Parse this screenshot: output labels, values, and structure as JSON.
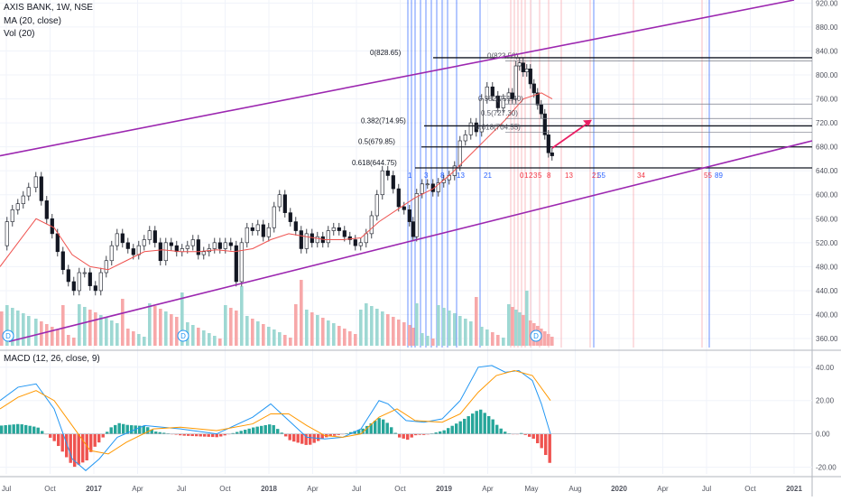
{
  "chart_data": [
    {
      "type": "candlestick",
      "legend": {
        "symbol": "AXIS BANK, 1W, NSE",
        "ma": "MA (20, close)",
        "vol": "Vol (20)"
      },
      "price_axis": {
        "ylim": [
          345,
          925
        ],
        "ticks": [
          "920.00",
          "880.00",
          "840.00",
          "800.00",
          "760.00",
          "720.00",
          "680.00",
          "640.00",
          "600.00",
          "560.00",
          "520.00",
          "480.00",
          "440.00",
          "400.00",
          "360.00"
        ]
      },
      "time_axis": {
        "labels": [
          "Jul",
          "Oct",
          "2017",
          "Apr",
          "Jul",
          "Oct",
          "2018",
          "Apr",
          "Jul",
          "Oct",
          "2019",
          "Apr",
          "May",
          "Aug",
          "2020",
          "Apr",
          "Jul",
          "Oct",
          "2021"
        ]
      },
      "price_path": [
        [
          0,
          515
        ],
        [
          6,
          555
        ],
        [
          12,
          575
        ],
        [
          18,
          585
        ],
        [
          24,
          598
        ],
        [
          30,
          612
        ],
        [
          38,
          630
        ],
        [
          44,
          590
        ],
        [
          50,
          560
        ],
        [
          56,
          535
        ],
        [
          62,
          505
        ],
        [
          68,
          475
        ],
        [
          74,
          455
        ],
        [
          80,
          440
        ],
        [
          86,
          470
        ],
        [
          92,
          470
        ],
        [
          98,
          448
        ],
        [
          104,
          440
        ],
        [
          110,
          470
        ],
        [
          116,
          490
        ],
        [
          122,
          515
        ],
        [
          128,
          535
        ],
        [
          134,
          520
        ],
        [
          140,
          510
        ],
        [
          146,
          500
        ],
        [
          152,
          515
        ],
        [
          158,
          525
        ],
        [
          164,
          540
        ],
        [
          170,
          520
        ],
        [
          176,
          490
        ],
        [
          182,
          520
        ],
        [
          188,
          515
        ],
        [
          194,
          505
        ],
        [
          200,
          510
        ],
        [
          206,
          515
        ],
        [
          212,
          525
        ],
        [
          218,
          500
        ],
        [
          224,
          505
        ],
        [
          230,
          510
        ],
        [
          236,
          520
        ],
        [
          242,
          510
        ],
        [
          248,
          520
        ],
        [
          254,
          515
        ],
        [
          260,
          455
        ],
        [
          266,
          520
        ],
        [
          272,
          545
        ],
        [
          278,
          540
        ],
        [
          284,
          550
        ],
        [
          290,
          530
        ],
        [
          296,
          545
        ],
        [
          302,
          580
        ],
        [
          308,
          600
        ],
        [
          314,
          570
        ],
        [
          320,
          555
        ],
        [
          326,
          540
        ],
        [
          332,
          510
        ],
        [
          338,
          535
        ],
        [
          344,
          520
        ],
        [
          350,
          530
        ],
        [
          356,
          520
        ],
        [
          362,
          540
        ],
        [
          368,
          545
        ],
        [
          374,
          540
        ],
        [
          380,
          530
        ],
        [
          386,
          525
        ],
        [
          392,
          515
        ],
        [
          398,
          520
        ],
        [
          404,
          535
        ],
        [
          410,
          565
        ],
        [
          416,
          600
        ],
        [
          422,
          640
        ],
        [
          428,
          632
        ],
        [
          434,
          610
        ],
        [
          440,
          580
        ],
        [
          446,
          575
        ],
        [
          452,
          555
        ],
        [
          456,
          530
        ],
        [
          460,
          602
        ],
        [
          466,
          618
        ],
        [
          472,
          618
        ],
        [
          478,
          605
        ],
        [
          484,
          620
        ],
        [
          490,
          625
        ],
        [
          496,
          632
        ],
        [
          502,
          648
        ],
        [
          508,
          690
        ],
        [
          514,
          700
        ],
        [
          520,
          720
        ],
        [
          526,
          705
        ],
        [
          532,
          760
        ],
        [
          538,
          780
        ],
        [
          544,
          765
        ],
        [
          550,
          745
        ],
        [
          556,
          760
        ],
        [
          562,
          770
        ],
        [
          566,
          760
        ],
        [
          570,
          815
        ],
        [
          574,
          820
        ],
        [
          578,
          805
        ],
        [
          582,
          810
        ],
        [
          586,
          785
        ],
        [
          590,
          770
        ],
        [
          594,
          750
        ],
        [
          598,
          735
        ],
        [
          602,
          700
        ],
        [
          606,
          670
        ],
        [
          610,
          665
        ]
      ],
      "ma_path": [
        [
          0,
          480
        ],
        [
          20,
          520
        ],
        [
          40,
          560
        ],
        [
          60,
          545
        ],
        [
          80,
          500
        ],
        [
          100,
          480
        ],
        [
          120,
          475
        ],
        [
          140,
          490
        ],
        [
          160,
          505
        ],
        [
          180,
          508
        ],
        [
          200,
          505
        ],
        [
          220,
          505
        ],
        [
          240,
          508
        ],
        [
          260,
          505
        ],
        [
          280,
          510
        ],
        [
          300,
          525
        ],
        [
          320,
          535
        ],
        [
          340,
          530
        ],
        [
          360,
          525
        ],
        [
          380,
          525
        ],
        [
          400,
          528
        ],
        [
          420,
          555
        ],
        [
          440,
          575
        ],
        [
          460,
          595
        ],
        [
          480,
          610
        ],
        [
          500,
          635
        ],
        [
          520,
          665
        ],
        [
          540,
          695
        ],
        [
          560,
          725
        ],
        [
          580,
          760
        ],
        [
          600,
          770
        ],
        [
          612,
          760
        ]
      ],
      "fib_levels": [
        {
          "label": "0(828.65)",
          "value": 828.65
        },
        {
          "label": "0.382(714.95)",
          "value": 714.95
        },
        {
          "label": "0.5(679.85)",
          "value": 679.85
        },
        {
          "label": "0.618(644.75)",
          "value": 644.75
        }
      ],
      "fib_levels_2": [
        {
          "label": "0(823.50)",
          "value": 823.5
        },
        {
          "label": "0.382(751.40)",
          "value": 751.4
        },
        {
          "label": "0.5(727.30)",
          "value": 727.3
        },
        {
          "label": "0.618(704.55)",
          "value": 704.55
        }
      ],
      "fib_time_labels": [
        {
          "text": "1",
          "color": "#2962ff"
        },
        {
          "text": "3",
          "color": "#2962ff"
        },
        {
          "text": "8",
          "color": "#2962ff"
        },
        {
          "text": "13",
          "color": "#2962ff"
        },
        {
          "text": "21",
          "color": "#2962ff"
        },
        {
          "text": "0",
          "color": "#f23645"
        },
        {
          "text": "1",
          "color": "#f23645"
        },
        {
          "text": "2",
          "color": "#f23645"
        },
        {
          "text": "3",
          "color": "#f23645"
        },
        {
          "text": "5",
          "color": "#f23645"
        },
        {
          "text": "8",
          "color": "#f23645"
        },
        {
          "text": "13",
          "color": "#f23645"
        },
        {
          "text": "21",
          "color": "#f23645"
        },
        {
          "text": "55",
          "color": "#2962ff"
        },
        {
          "text": "34",
          "color": "#f23645"
        },
        {
          "text": "55",
          "color": "#f23645"
        },
        {
          "text": "89",
          "color": "#2962ff"
        }
      ],
      "dividend_markers": [
        "D",
        "D",
        "D"
      ],
      "colors": {
        "up": "#26a69a",
        "down": "#ef5350",
        "ma": "#ef5350",
        "channel": "#9c27b0",
        "arrow": "#e91e63",
        "fib": "#131722"
      }
    },
    {
      "type": "macd",
      "legend": "MACD (12, 26, close, 9)",
      "ylim": [
        -24,
        48
      ],
      "ticks": [
        "40.00",
        "20.00",
        "0.00",
        "-20.00"
      ],
      "macd_path": [
        [
          0,
          20
        ],
        [
          20,
          28
        ],
        [
          40,
          30
        ],
        [
          60,
          15
        ],
        [
          80,
          -15
        ],
        [
          95,
          -22
        ],
        [
          110,
          -15
        ],
        [
          130,
          -2
        ],
        [
          160,
          5
        ],
        [
          200,
          3
        ],
        [
          240,
          0
        ],
        [
          280,
          10
        ],
        [
          300,
          18
        ],
        [
          320,
          8
        ],
        [
          340,
          -2
        ],
        [
          360,
          -3
        ],
        [
          380,
          -2
        ],
        [
          400,
          3
        ],
        [
          420,
          20
        ],
        [
          430,
          18
        ],
        [
          450,
          8
        ],
        [
          470,
          7
        ],
        [
          490,
          9
        ],
        [
          510,
          20
        ],
        [
          530,
          40
        ],
        [
          545,
          41
        ],
        [
          560,
          37
        ],
        [
          575,
          38
        ],
        [
          590,
          32
        ],
        [
          600,
          18
        ],
        [
          610,
          0
        ]
      ],
      "signal_path": [
        [
          0,
          15
        ],
        [
          20,
          22
        ],
        [
          40,
          26
        ],
        [
          60,
          20
        ],
        [
          80,
          5
        ],
        [
          100,
          -10
        ],
        [
          120,
          -12
        ],
        [
          140,
          -5
        ],
        [
          170,
          3
        ],
        [
          200,
          4
        ],
        [
          240,
          2
        ],
        [
          280,
          6
        ],
        [
          300,
          12
        ],
        [
          320,
          12
        ],
        [
          340,
          5
        ],
        [
          360,
          -1
        ],
        [
          380,
          -2
        ],
        [
          400,
          0
        ],
        [
          420,
          10
        ],
        [
          440,
          15
        ],
        [
          460,
          8
        ],
        [
          490,
          7
        ],
        [
          510,
          12
        ],
        [
          530,
          25
        ],
        [
          550,
          35
        ],
        [
          570,
          38
        ],
        [
          590,
          35
        ],
        [
          610,
          20
        ]
      ],
      "colors": {
        "macd": "#2196f3",
        "signal": "#ff9800",
        "hist_up": "#26a69a",
        "hist_down": "#ef5350"
      }
    }
  ]
}
